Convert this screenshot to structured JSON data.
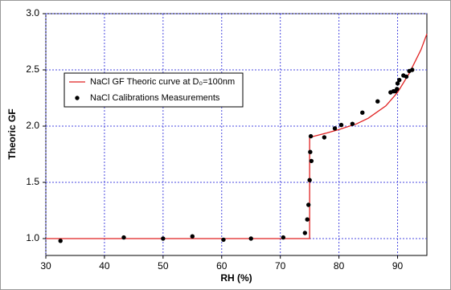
{
  "chart_data": {
    "type": "line-scatter",
    "x_label": "RH (%)",
    "y_label": "Theoric GF",
    "xlim": [
      30,
      95
    ],
    "ylim": [
      0.85,
      3.0
    ],
    "xticks": [
      30,
      40,
      50,
      60,
      70,
      80,
      90
    ],
    "yticks": [
      {
        "value": 1,
        "label": "1.0"
      },
      {
        "value": 1.5,
        "label": "1.5"
      },
      {
        "value": 2,
        "label": "2.0"
      },
      {
        "value": 2.5,
        "label": "2.5"
      },
      {
        "value": 3,
        "label": "3.0"
      }
    ],
    "grid": true,
    "legend": "upper left",
    "series": [
      {
        "name": "NaCl GF Theoric curve at D₀=100nm",
        "kind": "line",
        "color": "#e02020",
        "x": [
          30,
          75,
          75,
          78,
          80,
          83,
          85,
          88,
          90,
          92,
          94,
          95
        ],
        "values": [
          1.0,
          1.0,
          1.9,
          1.94,
          1.97,
          2.02,
          2.07,
          2.18,
          2.3,
          2.47,
          2.68,
          2.82
        ]
      },
      {
        "name": "NaCl Calibrations Measurements",
        "kind": "scatter",
        "color": "#000000",
        "x": [
          32.5,
          43.3,
          50,
          55,
          60.3,
          65,
          70.5,
          74.2,
          74.6,
          74.8,
          75,
          75.1,
          75.3,
          75.2,
          77.5,
          79.3,
          80.4,
          82.3,
          84,
          86.6,
          88.8,
          89.3,
          89.6,
          89.9,
          90,
          90.3,
          91,
          91.5,
          92,
          92.5
        ],
        "values": [
          0.98,
          1.01,
          1.0,
          1.02,
          0.99,
          1.0,
          1.01,
          1.05,
          1.17,
          1.3,
          1.52,
          1.77,
          1.69,
          1.91,
          1.9,
          1.98,
          2.01,
          2.02,
          2.12,
          2.22,
          2.3,
          2.31,
          2.31,
          2.33,
          2.38,
          2.41,
          2.45,
          2.44,
          2.49,
          2.5
        ]
      }
    ]
  }
}
